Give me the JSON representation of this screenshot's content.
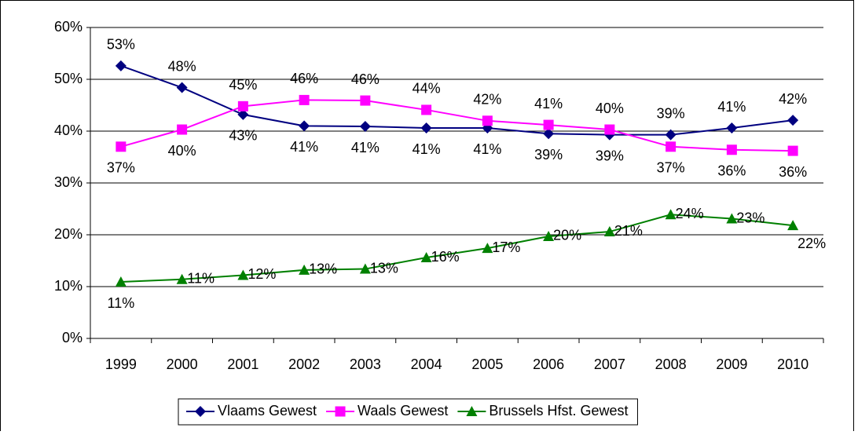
{
  "chart_data": {
    "type": "line",
    "categories": [
      "1999",
      "2000",
      "2001",
      "2002",
      "2003",
      "2004",
      "2005",
      "2006",
      "2007",
      "2008",
      "2009",
      "2010"
    ],
    "series": [
      {
        "name": "Vlaams Gewest",
        "color": "#000080",
        "marker": "diamond",
        "values": [
          52.6,
          48.4,
          43.2,
          41.0,
          40.9,
          40.6,
          40.6,
          39.5,
          39.3,
          39.3,
          40.6,
          42.1
        ],
        "value_labels": [
          "53%",
          "48%",
          "43%",
          "41%",
          "41%",
          "41%",
          "41%",
          "39%",
          "39%",
          "39%",
          "41%",
          "42%"
        ]
      },
      {
        "name": "Waals Gewest",
        "color": "#FF00FF",
        "marker": "square",
        "values": [
          37.0,
          40.3,
          44.8,
          46.0,
          45.9,
          44.1,
          42.0,
          41.2,
          40.3,
          37.0,
          36.4,
          36.2
        ],
        "value_labels": [
          "37%",
          "40%",
          "45%",
          "46%",
          "46%",
          "44%",
          "42%",
          "41%",
          "40%",
          "37%",
          "36%",
          "36%"
        ]
      },
      {
        "name": "Brussels Hfst. Gewest",
        "color": "#008000",
        "marker": "triangle",
        "values": [
          10.9,
          11.4,
          12.2,
          13.2,
          13.4,
          15.6,
          17.4,
          19.7,
          20.6,
          23.9,
          23.1,
          21.8
        ],
        "value_labels": [
          "11%",
          "11%",
          "12%",
          "13%",
          "13%",
          "16%",
          "17%",
          "20%",
          "21%",
          "24%",
          "23%",
          "22%"
        ]
      }
    ],
    "ylim": [
      0,
      60
    ],
    "yticks": [
      {
        "value": 0,
        "label": "0%"
      },
      {
        "value": 10,
        "label": "10%"
      },
      {
        "value": 20,
        "label": "20%"
      },
      {
        "value": 30,
        "label": "30%"
      },
      {
        "value": 40,
        "label": "40%"
      },
      {
        "value": 50,
        "label": "50%"
      },
      {
        "value": 60,
        "label": "60%"
      }
    ],
    "grid": true,
    "legend": "bottom"
  }
}
